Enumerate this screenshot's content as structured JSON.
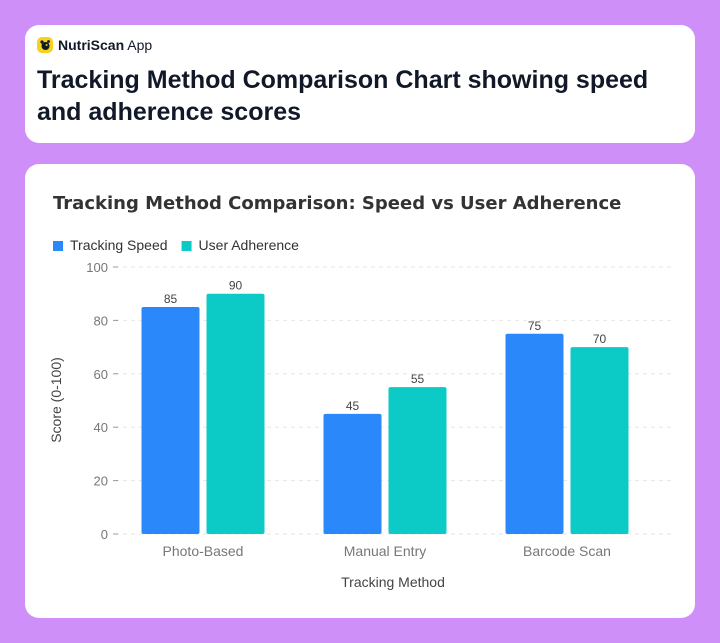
{
  "app": {
    "name": "NutriScan",
    "suffix": " App",
    "icon": "nutriscan-logo-icon",
    "logo_color": "#f6d21c"
  },
  "page": {
    "title": "Tracking Method Comparison Chart showing speed and adherence scores"
  },
  "colors": {
    "background": "#cf8ff9",
    "series_speed": "#2a88fa",
    "series_adherence": "#0ccac6"
  },
  "chart_data": {
    "type": "bar",
    "title": "Tracking Method Comparison: Speed vs User Adherence",
    "xlabel": "Tracking Method",
    "ylabel": "Score (0-100)",
    "ylim": [
      0,
      100
    ],
    "yticks": [
      0,
      20,
      40,
      60,
      80,
      100
    ],
    "grid": true,
    "legend_position": "top-left",
    "categories": [
      "Photo-Based",
      "Manual Entry",
      "Barcode Scan"
    ],
    "series": [
      {
        "name": "Tracking Speed",
        "color": "#2a88fa",
        "values": [
          85,
          45,
          75
        ]
      },
      {
        "name": "User Adherence",
        "color": "#0ccac6",
        "values": [
          90,
          55,
          70
        ]
      }
    ]
  }
}
